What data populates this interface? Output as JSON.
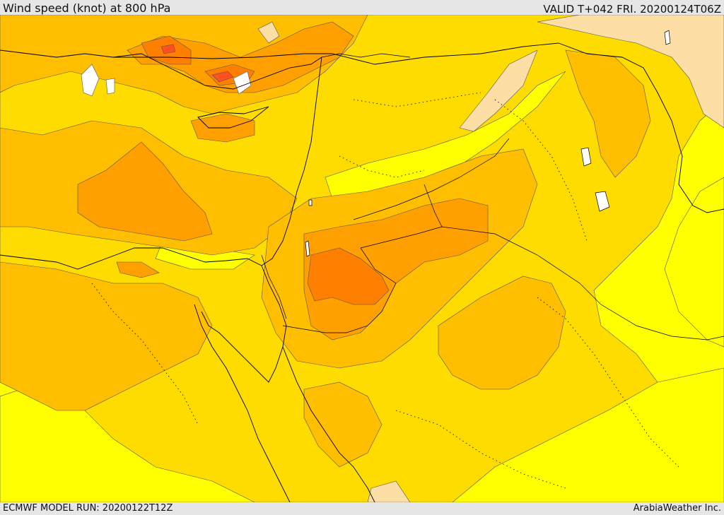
{
  "header": {
    "title": "Wind speed (knot) at 800 hPa",
    "valid": "VALID T+042 FRI. 20200124T06Z"
  },
  "footer": {
    "model_run": "ECMWF MODEL RUN: 20200122T12Z",
    "credit": "ArabiaWeather Inc."
  },
  "colors": {
    "band_lowest": "#ffff00",
    "band_low": "#ffdc00",
    "band_mid": "#ffbf00",
    "band_high": "#ffa000",
    "band_higher": "#ff8000",
    "band_peak": "#ff5020",
    "band_calm_white": "#ffffff",
    "band_calm_tan": "#fddfa5",
    "coastline": "#000000"
  }
}
